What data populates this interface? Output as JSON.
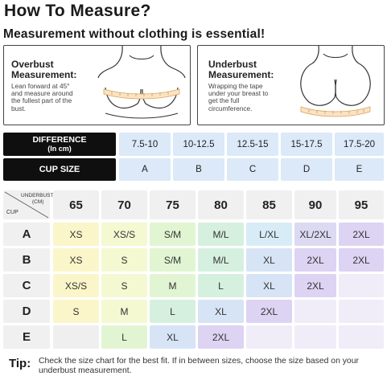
{
  "title": "How To Measure?",
  "subtitle": "Measurement without clothing is essential!",
  "overbust": {
    "heading": [
      "Overbust",
      "Measurement:"
    ],
    "desc": [
      "Lean forward at 45°",
      "and measure around",
      "the fullest part of the",
      "bust."
    ]
  },
  "underbust": {
    "heading": [
      "Underbust",
      "Measurement:"
    ],
    "desc": [
      "Wrapping the tape",
      "under your breast to",
      "get the full",
      "circumference."
    ]
  },
  "difference_table": {
    "difference_label": "DIFFERENCE",
    "difference_unit": "(In cm)",
    "cup_size_label": "CUP SIZE",
    "differences": [
      "7.5-10",
      "10-12.5",
      "12.5-15",
      "15-17.5",
      "17.5-20"
    ],
    "cups": [
      "A",
      "B",
      "C",
      "D",
      "E"
    ]
  },
  "size_chart": {
    "corner_underbust": "UNDERBUST",
    "corner_unit": "(CM)",
    "corner_cup": "CUP",
    "underbust_values": [
      "65",
      "70",
      "75",
      "80",
      "85",
      "90",
      "95"
    ],
    "rows": [
      {
        "cup": "A",
        "sizes": [
          "XS",
          "XS/S",
          "S/M",
          "M/L",
          "L/XL",
          "XL/2XL",
          "2XL"
        ]
      },
      {
        "cup": "B",
        "sizes": [
          "XS",
          "S",
          "S/M",
          "M/L",
          "XL",
          "2XL",
          "2XL"
        ]
      },
      {
        "cup": "C",
        "sizes": [
          "XS/S",
          "S",
          "M",
          "L",
          "XL",
          "2XL",
          ""
        ]
      },
      {
        "cup": "D",
        "sizes": [
          "S",
          "M",
          "L",
          "XL",
          "2XL",
          "",
          ""
        ]
      },
      {
        "cup": "E",
        "sizes": [
          "",
          "L",
          "XL",
          "2XL",
          "",
          "",
          ""
        ]
      }
    ]
  },
  "tip": {
    "label": "Tip:",
    "text": "Check the size chart for the best fit. If in between sizes, choose the size based on your underbust measurement."
  }
}
